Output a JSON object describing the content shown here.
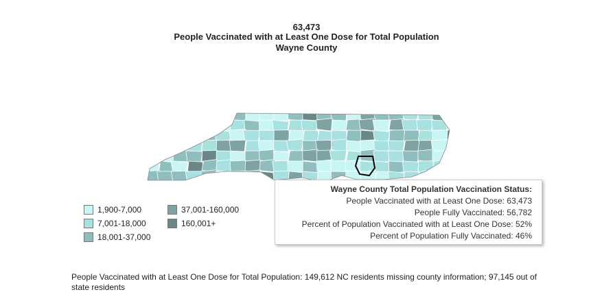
{
  "header": {
    "value": "63,473",
    "title": "People Vaccinated with at Least One Dose for Total Population",
    "subtitle": "Wayne County"
  },
  "legend": [
    {
      "label": "1,900-7,000",
      "color": "#c9f5f5"
    },
    {
      "label": "7,001-18,000",
      "color": "#a9e1e1"
    },
    {
      "label": "18,001-37,000",
      "color": "#90bdbd"
    },
    {
      "label": "37,001-160,000",
      "color": "#7fa2a2"
    },
    {
      "label": "160,001+",
      "color": "#6c8787"
    }
  ],
  "tooltip": {
    "title": "Wayne County Total Population Vaccination Status:",
    "lines": [
      "People Vaccinated with at Least One Dose: 63,473",
      "People Fully Vaccinated: 56,782",
      "Percent of Population Vaccinated with at Least One Dose: 52%",
      "Percent of Population Fully Vaccinated: 46%"
    ]
  },
  "footnote": "People Vaccinated with at Least One Dose for Total Population:  149,612 NC residents missing county information; 97,145 out of state residents"
}
